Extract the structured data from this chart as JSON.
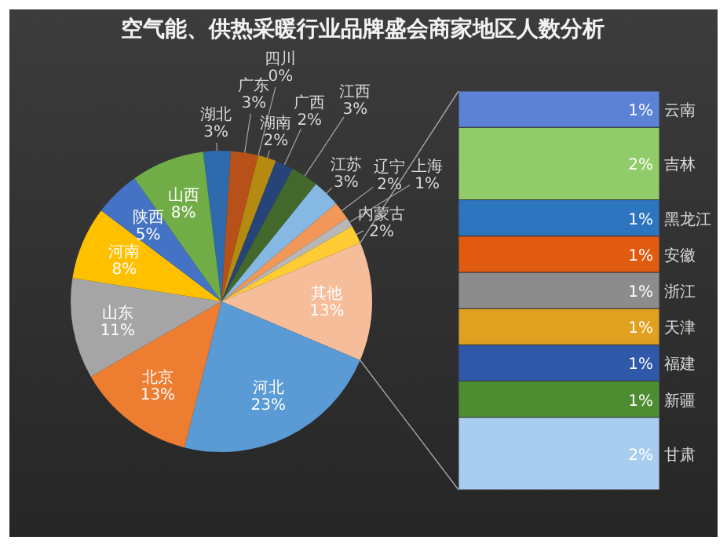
{
  "chart_data": [
    {
      "type": "pie",
      "title": "空气能、供热采暖行业品牌盛会商家地区人数分析",
      "categories": [
        "湖北",
        "广东",
        "四川",
        "湖南",
        "广西",
        "江西",
        "江苏",
        "辽宁",
        "上海",
        "内蒙古",
        "其他",
        "河北",
        "北京",
        "山东",
        "河南",
        "陕西",
        "山西"
      ],
      "values": [
        3,
        3,
        0,
        2,
        2,
        3,
        3,
        2,
        1,
        2,
        13,
        23,
        13,
        11,
        8,
        5,
        8
      ],
      "colors": [
        "#2f6aad",
        "#b8501a",
        "#636363",
        "#b58a10",
        "#264478",
        "#43682b",
        "#86b8e4",
        "#f1975a",
        "#b7b7b7",
        "#ffcd33",
        "#f6bd9a",
        "#5b9bd5",
        "#ed7d31",
        "#a5a5a5",
        "#ffc000",
        "#4472c4",
        "#70ad47"
      ],
      "value_labels": [
        "3%",
        "3%",
        "0%",
        "2%",
        "2%",
        "3%",
        "3%",
        "2%",
        "1%",
        "2%",
        "13%",
        "23%",
        "13%",
        "11%",
        "8%",
        "5%",
        "8%"
      ]
    },
    {
      "type": "bar",
      "stacked": true,
      "categories": [
        null
      ],
      "series": [
        {
          "name": "甘肃",
          "color": "#a9cdef",
          "values": [
            2
          ],
          "value_labels": [
            "2%"
          ]
        },
        {
          "name": "新疆",
          "color": "#4e8c32",
          "values": [
            1
          ],
          "value_labels": [
            "1%"
          ]
        },
        {
          "name": "福建",
          "color": "#2f58a8",
          "values": [
            1
          ],
          "value_labels": [
            "1%"
          ]
        },
        {
          "name": "天津",
          "color": "#e0a020",
          "values": [
            1
          ],
          "value_labels": [
            "1%"
          ]
        },
        {
          "name": "浙江",
          "color": "#8c8c8c",
          "values": [
            1
          ],
          "value_labels": [
            "1%"
          ]
        },
        {
          "name": "安徽",
          "color": "#e05a10",
          "values": [
            1
          ],
          "value_labels": [
            "1%"
          ]
        },
        {
          "name": "黑龙江",
          "color": "#2e75c0",
          "values": [
            1
          ],
          "value_labels": [
            "1%"
          ]
        },
        {
          "name": "吉林",
          "color": "#92cc6a",
          "values": [
            2
          ],
          "value_labels": [
            "2%"
          ]
        },
        {
          "name": "云南",
          "color": "#5b82d4",
          "values": [
            1
          ],
          "value_labels": [
            "1%"
          ]
        }
      ]
    }
  ]
}
